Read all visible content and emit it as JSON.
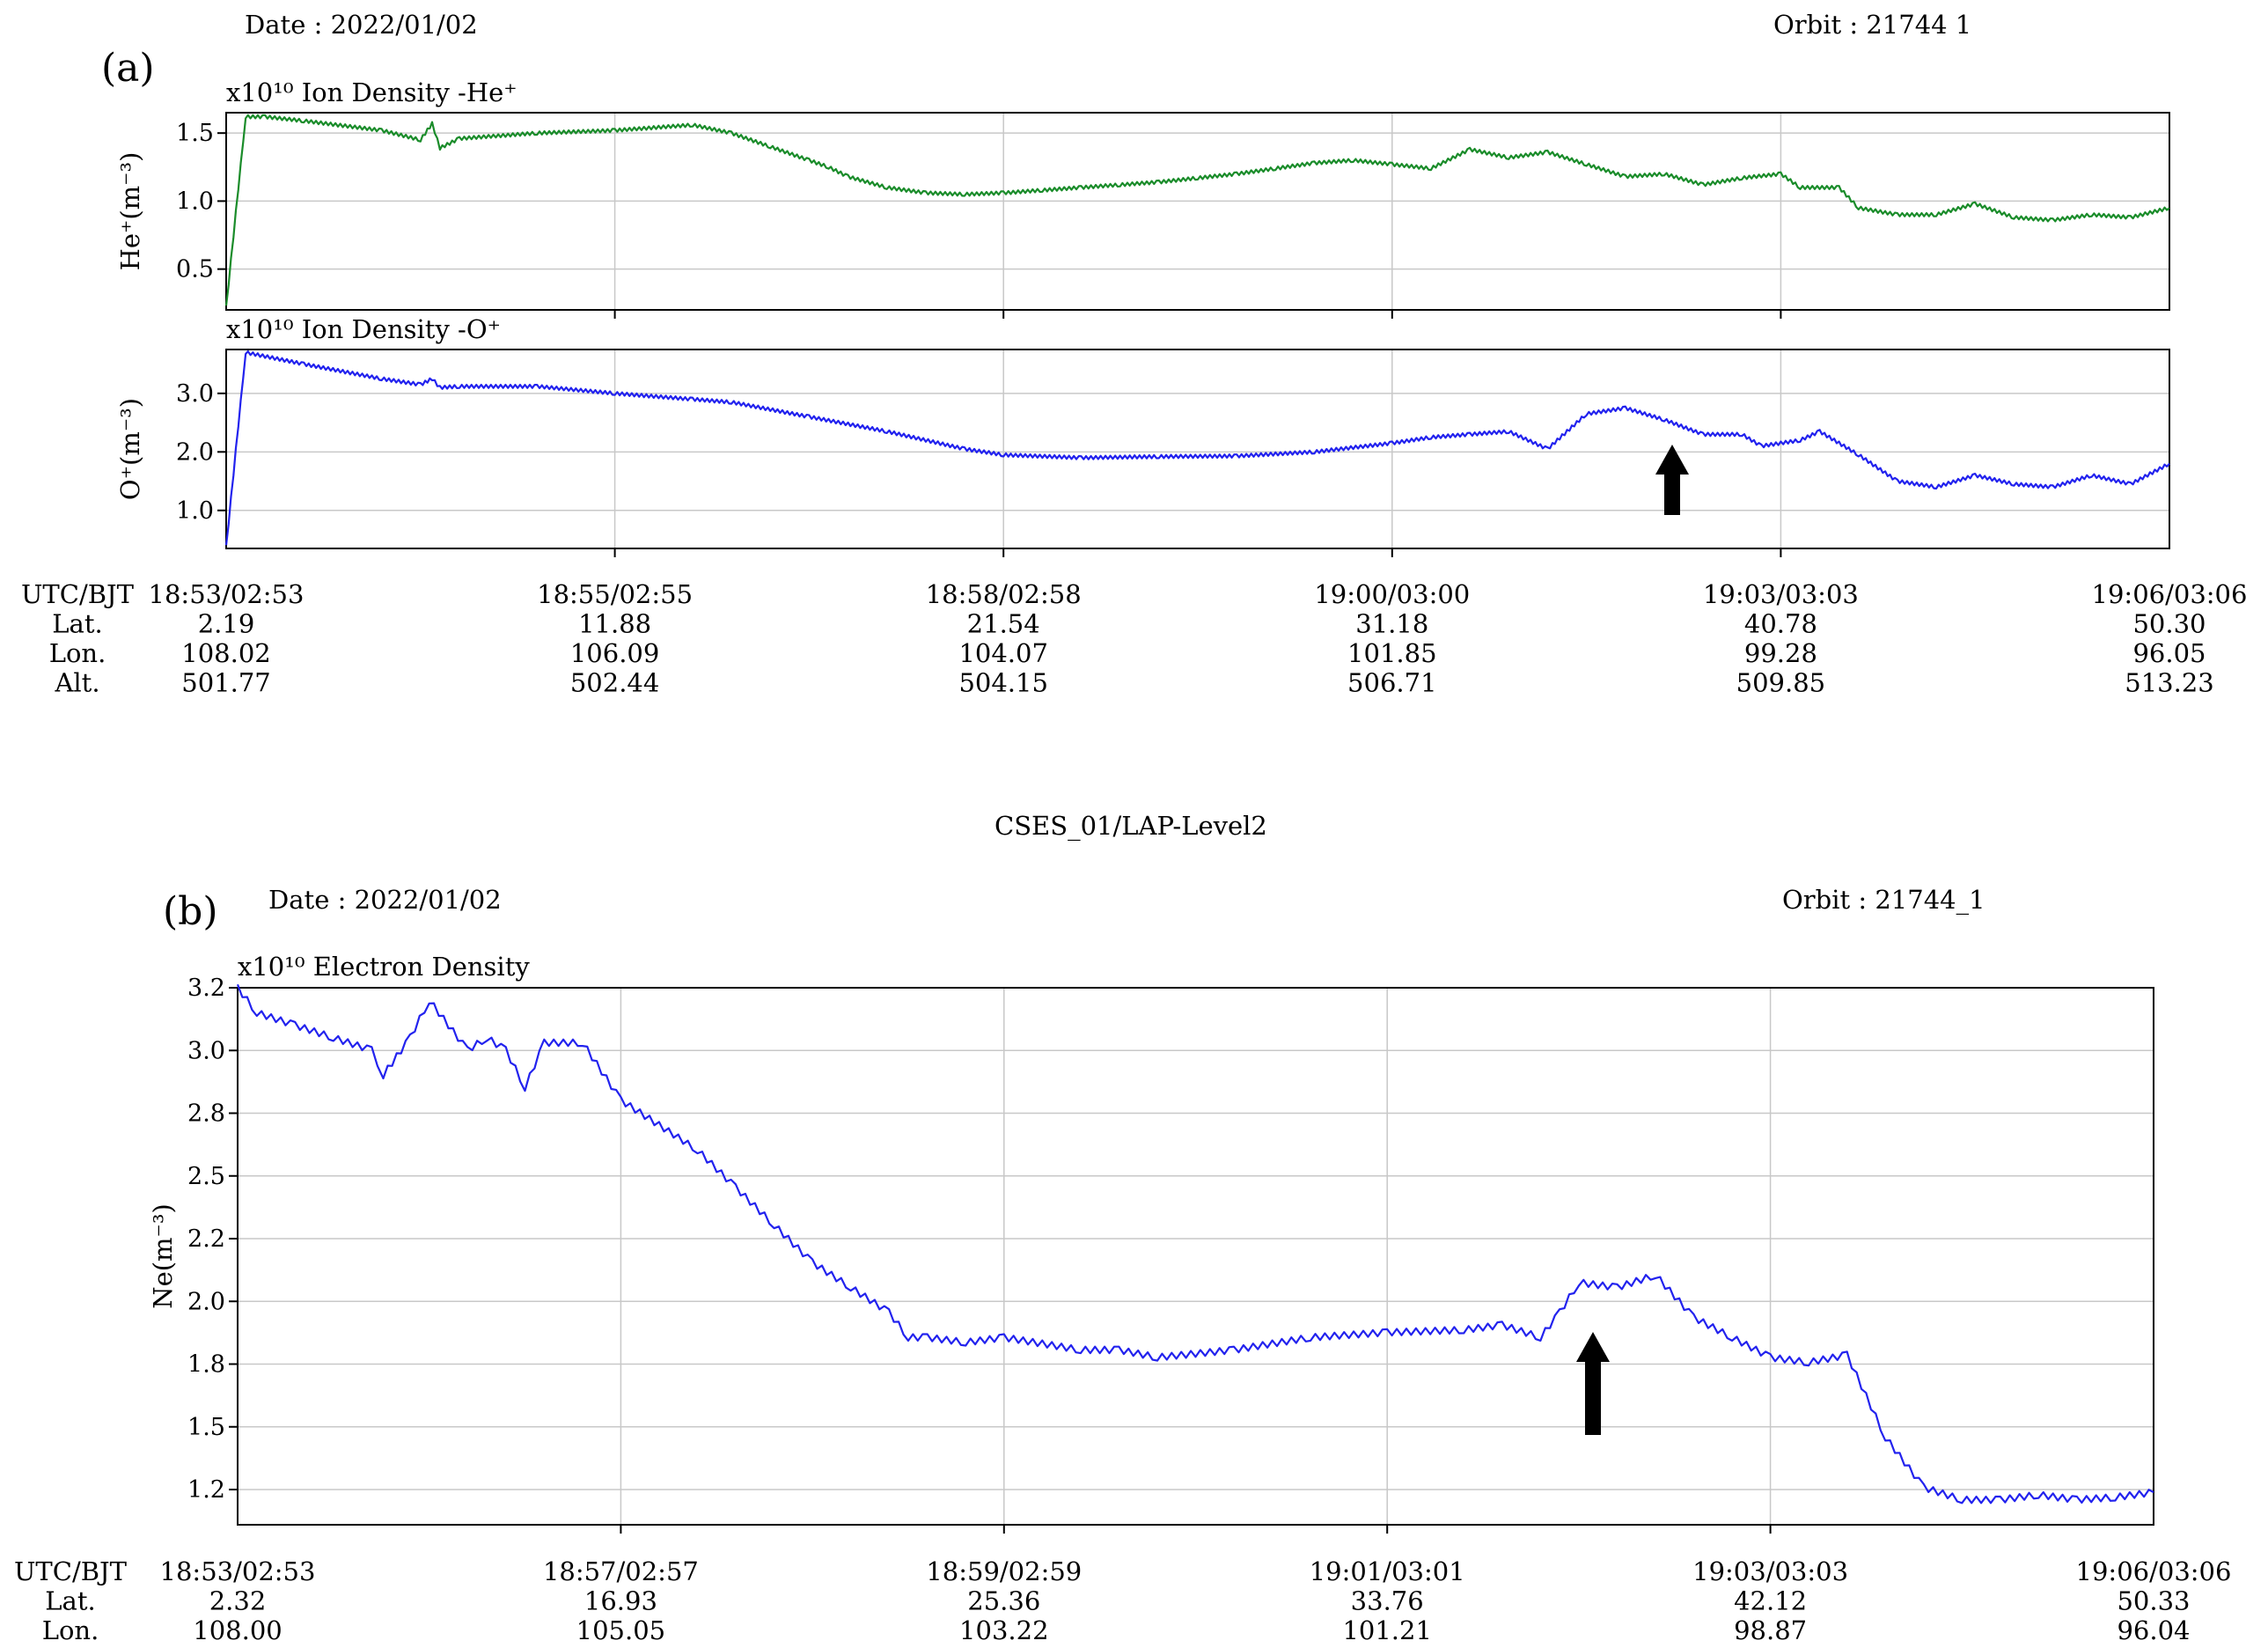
{
  "figure": {
    "panel_a": {
      "label": "(a)",
      "date": "Date : 2022/01/02",
      "orbit": "Orbit : 21744  1",
      "info_header": [
        "UTC/BJT",
        "Lat.",
        "Lon.",
        "Alt."
      ],
      "info_columns": [
        [
          "18:53/02:53",
          "2.19",
          "108.02",
          "501.77"
        ],
        [
          "18:55/02:55",
          "11.88",
          "106.09",
          "502.44"
        ],
        [
          "18:58/02:58",
          "21.54",
          "104.07",
          "504.15"
        ],
        [
          "19:00/03:00",
          "31.18",
          "101.85",
          "506.71"
        ],
        [
          "19:03/03:03",
          "40.78",
          "99.28",
          "509.85"
        ],
        [
          "19:06/03:06",
          "50.30",
          "96.05",
          "513.23"
        ]
      ]
    },
    "center_title": "CSES_01/LAP-Level2",
    "panel_b": {
      "label": "(b)",
      "date": "Date : 2022/01/02",
      "orbit": "Orbit : 21744_1",
      "info_header": [
        "UTC/BJT",
        "Lat.",
        "Lon."
      ],
      "info_columns": [
        [
          "18:53/02:53",
          "2.32",
          "108.00"
        ],
        [
          "18:57/02:57",
          "16.93",
          "105.05"
        ],
        [
          "18:59/02:59",
          "25.36",
          "103.22"
        ],
        [
          "19:01/03:01",
          "33.76",
          "101.21"
        ],
        [
          "19:03/03:03",
          "42.12",
          "98.87"
        ],
        [
          "19:06/03:06",
          "50.33",
          "96.04"
        ]
      ]
    }
  },
  "chart_data": [
    {
      "type": "line",
      "title": "x10¹⁰ Ion Density -He⁺",
      "ylabel": "He⁺(m⁻³)",
      "ylim": [
        0.2,
        1.65
      ],
      "yticks": [
        "0.5",
        "1.0",
        "1.5"
      ],
      "yticks_values": [
        0.5,
        1.0,
        1.5
      ],
      "x_tick_labels": [
        "18:53/02:53",
        "18:55/02:55",
        "18:58/02:58",
        "19:00/03:00",
        "19:03/03:03",
        "19:06/03:06"
      ],
      "grid": true,
      "color": "#1a8c2a",
      "series": [
        {
          "x": [
            0,
            0.05,
            0.1,
            0.2,
            0.4,
            0.5,
            0.53,
            0.55,
            0.6,
            0.8,
            1.0,
            1.2,
            1.3,
            1.4,
            1.5,
            1.55,
            1.6,
            1.7,
            1.8,
            1.9,
            2.0,
            2.1,
            2.2,
            2.3,
            2.4,
            2.5,
            2.6,
            2.7,
            2.8,
            2.9,
            3.0,
            3.1,
            3.2,
            3.3,
            3.4,
            3.5,
            3.6,
            3.7,
            3.8,
            3.9,
            4.0,
            4.05,
            4.15,
            4.2,
            4.3,
            4.4,
            4.5,
            4.6,
            4.7,
            4.8,
            4.9,
            5.0
          ],
          "y": [
            0.22,
            1.62,
            1.62,
            1.59,
            1.52,
            1.45,
            1.57,
            1.39,
            1.46,
            1.5,
            1.52,
            1.56,
            1.5,
            1.4,
            1.3,
            1.25,
            1.18,
            1.1,
            1.06,
            1.05,
            1.06,
            1.08,
            1.1,
            1.12,
            1.14,
            1.17,
            1.2,
            1.24,
            1.28,
            1.3,
            1.27,
            1.24,
            1.38,
            1.32,
            1.36,
            1.27,
            1.18,
            1.2,
            1.12,
            1.17,
            1.2,
            1.1,
            1.1,
            0.95,
            0.9,
            0.9,
            0.98,
            0.88,
            0.86,
            0.9,
            0.88,
            0.95
          ]
        }
      ]
    },
    {
      "type": "line",
      "title": "x10¹⁰ Ion Density -O⁺",
      "ylabel": "O⁺(m⁻³)",
      "ylim": [
        0.35,
        3.75
      ],
      "yticks": [
        "1.0",
        "2.0",
        "3.0"
      ],
      "yticks_values": [
        1.0,
        2.0,
        3.0
      ],
      "x_tick_labels": [
        "18:53/02:53",
        "18:55/02:55",
        "18:58/02:58",
        "19:00/03:00",
        "19:03/03:03",
        "19:06/03:06"
      ],
      "grid": true,
      "color": "#2222ee",
      "annotation": "arrow",
      "series": [
        {
          "x": [
            0,
            0.05,
            0.2,
            0.4,
            0.5,
            0.53,
            0.55,
            0.6,
            0.8,
            1.0,
            1.2,
            1.3,
            1.5,
            1.7,
            1.9,
            2.0,
            2.2,
            2.4,
            2.6,
            2.8,
            3.0,
            3.1,
            3.2,
            3.3,
            3.4,
            3.5,
            3.6,
            3.7,
            3.8,
            3.9,
            3.95,
            4.05,
            4.1,
            4.2,
            4.3,
            4.4,
            4.5,
            4.6,
            4.7,
            4.8,
            4.9,
            5.0
          ],
          "y": [
            0.38,
            3.7,
            3.5,
            3.25,
            3.15,
            3.25,
            3.1,
            3.12,
            3.12,
            3.0,
            2.9,
            2.85,
            2.6,
            2.35,
            2.05,
            1.95,
            1.9,
            1.92,
            1.93,
            2.0,
            2.15,
            2.25,
            2.3,
            2.35,
            2.05,
            2.65,
            2.75,
            2.55,
            2.3,
            2.3,
            2.1,
            2.2,
            2.35,
            1.95,
            1.5,
            1.4,
            1.6,
            1.45,
            1.4,
            1.6,
            1.45,
            1.8
          ]
        }
      ]
    },
    {
      "type": "line",
      "title": "x10¹⁰ Electron Density",
      "ylabel": "Ne(m⁻³)",
      "ylim": [
        1.05,
        3.2
      ],
      "yticks": [
        "1.2",
        "1.5",
        "1.8",
        "2.0",
        "2.2",
        "2.5",
        "2.8",
        "3.0",
        "3.2"
      ],
      "x_tick_labels": [
        "18:53/02:53",
        "18:57/02:57",
        "18:59/02:59",
        "19:01/03:01",
        "19:03/03:03",
        "19:06/03:06"
      ],
      "grid": true,
      "color": "#2222ee",
      "annotation": "arrow",
      "series": [
        {
          "x": [
            0,
            0.05,
            0.15,
            0.25,
            0.35,
            0.38,
            0.45,
            0.5,
            0.6,
            0.65,
            0.7,
            0.75,
            0.8,
            0.9,
            1.0,
            1.2,
            1.3,
            1.4,
            1.5,
            1.6,
            1.7,
            1.75,
            1.8,
            1.9,
            2.0,
            2.2,
            2.3,
            2.4,
            2.6,
            2.8,
            3.0,
            3.2,
            3.3,
            3.4,
            3.45,
            3.5,
            3.6,
            3.7,
            3.8,
            3.9,
            4.0,
            4.1,
            4.2,
            4.3,
            4.4,
            4.5,
            4.6,
            4.7,
            4.8,
            4.9,
            5.0
          ],
          "y": [
            3.2,
            3.1,
            3.05,
            3.0,
            2.95,
            2.85,
            3.0,
            3.15,
            2.95,
            3.0,
            2.95,
            2.8,
            2.98,
            2.98,
            2.75,
            2.55,
            2.4,
            2.25,
            2.1,
            2.0,
            1.9,
            1.8,
            1.8,
            1.78,
            1.8,
            1.75,
            1.75,
            1.72,
            1.75,
            1.8,
            1.82,
            1.83,
            1.85,
            1.8,
            1.9,
            2.02,
            2.0,
            2.05,
            1.88,
            1.8,
            1.72,
            1.7,
            1.73,
            1.4,
            1.2,
            1.15,
            1.15,
            1.17,
            1.15,
            1.16,
            1.18
          ]
        }
      ]
    }
  ]
}
